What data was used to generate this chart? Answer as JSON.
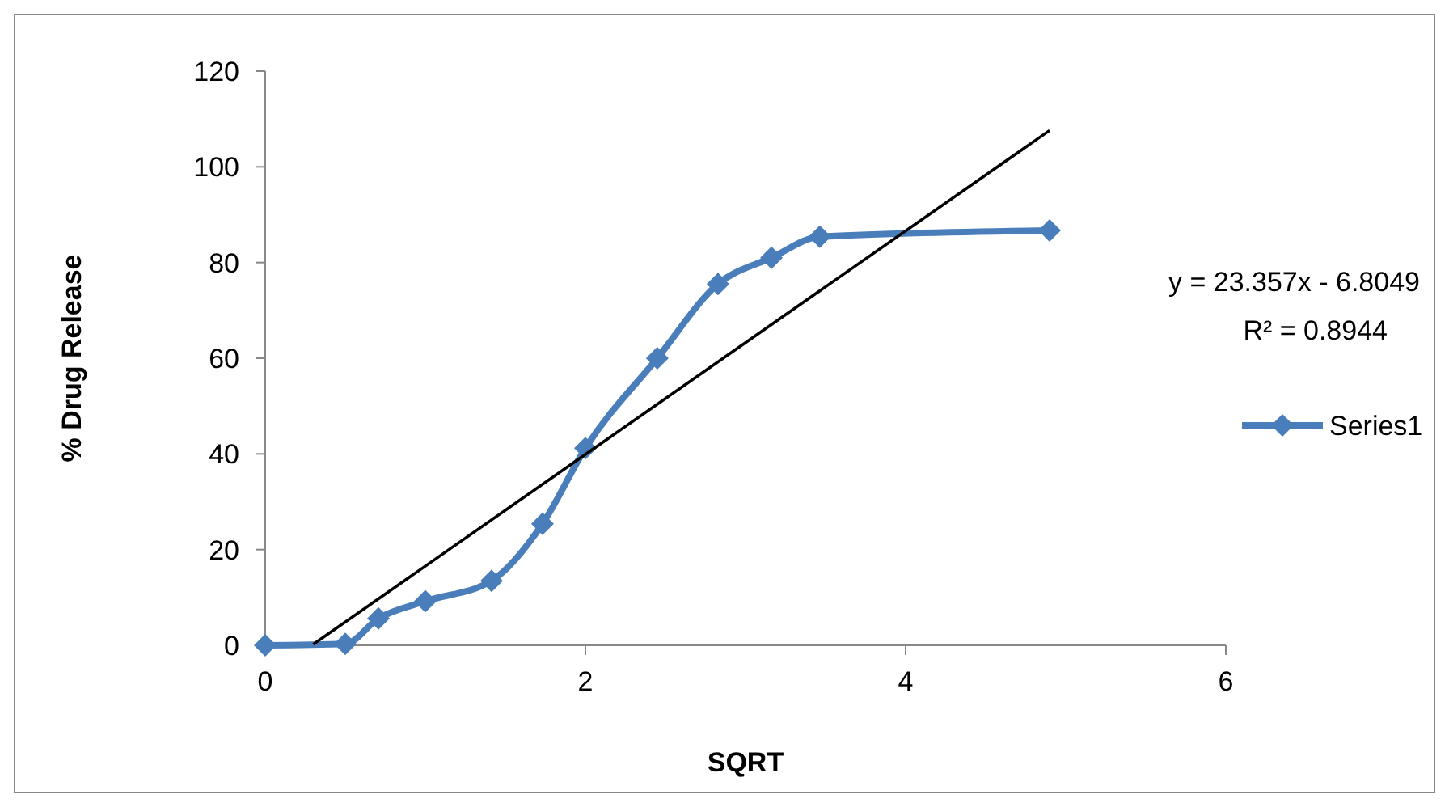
{
  "chart_data": {
    "type": "line",
    "xlabel": "SQRT",
    "ylabel": "% Drug Release",
    "xlim": [
      0,
      6
    ],
    "xticks": [
      0,
      2,
      4,
      6
    ],
    "ylim": [
      0,
      120
    ],
    "yticks": [
      0,
      20,
      40,
      60,
      80,
      100,
      120
    ],
    "grid": false,
    "legend": "right",
    "marker": "diamond",
    "annotations": [
      "y = 23.357x - 6.8049",
      "R² = 0.8944"
    ],
    "series": [
      {
        "name": "Series1",
        "color": "#4a7ebb",
        "x": [
          0,
          0.5,
          0.707,
          1,
          1.414,
          1.732,
          2,
          2.449,
          2.828,
          3.162,
          3.464,
          4.899
        ],
        "values": [
          0,
          0.3,
          5.6,
          9.2,
          13.5,
          25.4,
          41.2,
          60,
          75.5,
          81,
          85.4,
          86.7
        ]
      },
      {
        "type": "line",
        "color": "#000000",
        "marker": "none",
        "x": [
          0.3,
          4.899
        ],
        "values": [
          0.2,
          107.6
        ]
      }
    ]
  }
}
